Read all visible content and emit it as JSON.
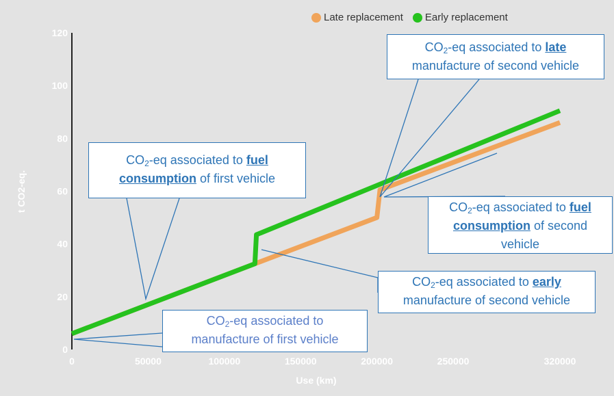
{
  "legend": {
    "late_label": "Late replacement",
    "early_label": "Early replacement",
    "late_color": "#f0a45a",
    "early_color": "#26c21e"
  },
  "chart_data": {
    "type": "line",
    "xlabel": "Use (km)",
    "ylabel": "t CO2-eq.",
    "xlim": [
      0,
      320000
    ],
    "ylim": [
      0,
      120
    ],
    "x_ticks": [
      "0",
      "50000",
      "100000",
      "150000",
      "200000",
      "250000",
      "320000"
    ],
    "x_tick_values": [
      0,
      50000,
      100000,
      150000,
      200000,
      250000,
      320000
    ],
    "y_ticks": [
      "0",
      "20",
      "40",
      "60",
      "80",
      "100",
      "120"
    ],
    "y_tick_values": [
      0,
      20,
      40,
      60,
      80,
      100,
      120
    ],
    "series": [
      {
        "name": "Late replacement",
        "color": "#f0a45a",
        "points": [
          [
            0,
            6
          ],
          [
            120000,
            32.5
          ],
          [
            200000,
            50
          ],
          [
            202000,
            60.5
          ],
          [
            320000,
            86
          ]
        ]
      },
      {
        "name": "Early replacement",
        "color": "#26c21e",
        "points": [
          [
            0,
            6
          ],
          [
            120000,
            32.5
          ],
          [
            121000,
            43.5
          ],
          [
            320000,
            90.5
          ]
        ]
      }
    ]
  },
  "callouts": {
    "late": {
      "prefix": "CO",
      "sub": "2",
      "mid": "-eq associated to ",
      "emph": "late",
      "suffix": "manufacture of second vehicle"
    },
    "fuel_first": {
      "prefix": "CO",
      "sub": "2",
      "mid": "-eq associated to ",
      "emph": "fuel consumption",
      "suffix": " of first vehicle"
    },
    "fuel_second": {
      "prefix": "CO",
      "sub": "2",
      "mid": "-eq associated to ",
      "emph": "fuel consumption",
      "suffix": " of second vehicle"
    },
    "early": {
      "prefix": "CO",
      "sub": "2",
      "mid": "-eq associated to ",
      "emph": "early",
      "suffix": "manufacture of second vehicle"
    },
    "first": {
      "prefix": "CO",
      "sub": "2",
      "mid": "-eq associated to",
      "suffix": "manufacture of first vehicle"
    }
  }
}
